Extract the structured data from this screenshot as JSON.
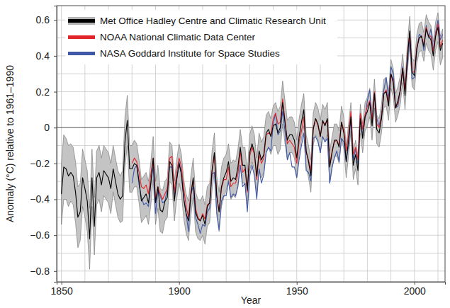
{
  "chart_data": {
    "type": "line",
    "x_label": "Year",
    "y_label": "Anomaly (°C) relative to 1961–1990",
    "xlim": [
      1848,
      2013
    ],
    "ylim": [
      -0.86,
      0.68
    ],
    "xticks": [
      1850,
      1900,
      1950,
      2000
    ],
    "x_minor_ticks": [
      1860,
      1870,
      1880,
      1890,
      1910,
      1920,
      1930,
      1940,
      1960,
      1970,
      1980,
      1990,
      2010
    ],
    "yticks": [
      {
        "value": -0.8,
        "label": "−0.8"
      },
      {
        "value": -0.6,
        "label": "−0.6"
      },
      {
        "value": -0.4,
        "label": "−0.4"
      },
      {
        "value": -0.2,
        "label": "−0.2"
      },
      0,
      0.2,
      0.4,
      0.6
    ],
    "y_minor_ticks": [
      -0.7,
      -0.5,
      -0.3,
      -0.1,
      0.1,
      0.3,
      0.5
    ],
    "grid": true,
    "legend": "upper-left",
    "x": [
      1850,
      1851,
      1852,
      1853,
      1854,
      1855,
      1856,
      1857,
      1858,
      1859,
      1860,
      1861,
      1862,
      1863,
      1864,
      1865,
      1866,
      1867,
      1868,
      1869,
      1870,
      1871,
      1872,
      1873,
      1874,
      1875,
      1876,
      1877,
      1878,
      1879,
      1880,
      1881,
      1882,
      1883,
      1884,
      1885,
      1886,
      1887,
      1888,
      1889,
      1890,
      1891,
      1892,
      1893,
      1894,
      1895,
      1896,
      1897,
      1898,
      1899,
      1900,
      1901,
      1902,
      1903,
      1904,
      1905,
      1906,
      1907,
      1908,
      1909,
      1910,
      1911,
      1912,
      1913,
      1914,
      1915,
      1916,
      1917,
      1918,
      1919,
      1920,
      1921,
      1922,
      1923,
      1924,
      1925,
      1926,
      1927,
      1928,
      1929,
      1930,
      1931,
      1932,
      1933,
      1934,
      1935,
      1936,
      1937,
      1938,
      1939,
      1940,
      1941,
      1942,
      1943,
      1944,
      1945,
      1946,
      1947,
      1948,
      1949,
      1950,
      1951,
      1952,
      1953,
      1954,
      1955,
      1956,
      1957,
      1958,
      1959,
      1960,
      1961,
      1962,
      1963,
      1964,
      1965,
      1966,
      1967,
      1968,
      1969,
      1970,
      1971,
      1972,
      1973,
      1974,
      1975,
      1976,
      1977,
      1978,
      1979,
      1980,
      1981,
      1982,
      1983,
      1984,
      1985,
      1986,
      1987,
      1988,
      1989,
      1990,
      1991,
      1992,
      1993,
      1994,
      1995,
      1996,
      1997,
      1998,
      1999,
      2000,
      2001,
      2002,
      2003,
      2004,
      2005,
      2006,
      2007,
      2008,
      2009,
      2010,
      2011,
      2012
    ],
    "series": [
      {
        "name": "Met Office Hadley Centre and Climatic Research Unit",
        "color": "#000000",
        "values": [
          -0.37,
          -0.22,
          -0.23,
          -0.27,
          -0.25,
          -0.27,
          -0.36,
          -0.5,
          -0.47,
          -0.28,
          -0.34,
          -0.41,
          -0.62,
          -0.28,
          -0.55,
          -0.28,
          -0.25,
          -0.32,
          -0.24,
          -0.26,
          -0.28,
          -0.34,
          -0.23,
          -0.3,
          -0.37,
          -0.4,
          -0.38,
          -0.08,
          0.04,
          -0.23,
          -0.23,
          -0.2,
          -0.21,
          -0.3,
          -0.41,
          -0.39,
          -0.37,
          -0.42,
          -0.31,
          -0.17,
          -0.42,
          -0.33,
          -0.46,
          -0.47,
          -0.41,
          -0.39,
          -0.19,
          -0.21,
          -0.41,
          -0.29,
          -0.2,
          -0.26,
          -0.4,
          -0.48,
          -0.52,
          -0.38,
          -0.28,
          -0.47,
          -0.51,
          -0.52,
          -0.49,
          -0.54,
          -0.44,
          -0.42,
          -0.24,
          -0.14,
          -0.38,
          -0.47,
          -0.33,
          -0.28,
          -0.25,
          -0.19,
          -0.3,
          -0.28,
          -0.29,
          -0.22,
          -0.11,
          -0.21,
          -0.21,
          -0.35,
          -0.14,
          -0.09,
          -0.14,
          -0.27,
          -0.13,
          -0.18,
          -0.15,
          -0.03,
          -0.01,
          -0.05,
          0.01,
          0.02,
          -0.03,
          0.0,
          0.14,
          0.03,
          -0.07,
          -0.04,
          -0.04,
          -0.07,
          -0.17,
          -0.05,
          0.03,
          0.1,
          -0.13,
          -0.19,
          -0.27,
          -0.01,
          0.05,
          0.02,
          -0.05,
          0.04,
          0.01,
          0.05,
          -0.22,
          -0.14,
          -0.07,
          -0.07,
          -0.11,
          0.03,
          -0.03,
          -0.19,
          -0.07,
          0.06,
          -0.21,
          -0.15,
          -0.24,
          0.05,
          -0.06,
          0.06,
          0.09,
          0.14,
          0.01,
          0.19,
          -0.01,
          -0.03,
          0.05,
          0.19,
          0.2,
          0.12,
          0.3,
          0.25,
          0.11,
          0.15,
          0.21,
          0.33,
          0.18,
          0.39,
          0.54,
          0.31,
          0.29,
          0.44,
          0.5,
          0.51,
          0.45,
          0.55,
          0.51,
          0.49,
          0.4,
          0.51,
          0.56,
          0.43,
          0.47
        ],
        "error": [
          0.17,
          0.18,
          0.17,
          0.17,
          0.16,
          0.16,
          0.17,
          0.17,
          0.16,
          0.16,
          0.16,
          0.17,
          0.17,
          0.16,
          0.16,
          0.15,
          0.15,
          0.15,
          0.14,
          0.14,
          0.14,
          0.14,
          0.13,
          0.13,
          0.13,
          0.13,
          0.14,
          0.14,
          0.14,
          0.13,
          0.13,
          0.13,
          0.12,
          0.12,
          0.12,
          0.12,
          0.12,
          0.12,
          0.12,
          0.12,
          0.12,
          0.12,
          0.12,
          0.12,
          0.11,
          0.11,
          0.11,
          0.11,
          0.11,
          0.11,
          0.11,
          0.11,
          0.11,
          0.11,
          0.11,
          0.11,
          0.11,
          0.11,
          0.11,
          0.11,
          0.11,
          0.11,
          0.11,
          0.11,
          0.11,
          0.11,
          0.11,
          0.11,
          0.11,
          0.11,
          0.1,
          0.1,
          0.1,
          0.1,
          0.1,
          0.1,
          0.1,
          0.1,
          0.1,
          0.1,
          0.1,
          0.1,
          0.1,
          0.1,
          0.1,
          0.1,
          0.1,
          0.1,
          0.1,
          0.1,
          0.11,
          0.12,
          0.12,
          0.12,
          0.12,
          0.12,
          0.11,
          0.1,
          0.1,
          0.1,
          0.1,
          0.1,
          0.1,
          0.09,
          0.09,
          0.09,
          0.09,
          0.09,
          0.09,
          0.09,
          0.09,
          0.09,
          0.09,
          0.09,
          0.09,
          0.09,
          0.09,
          0.09,
          0.09,
          0.09,
          0.09,
          0.09,
          0.09,
          0.08,
          0.08,
          0.08,
          0.08,
          0.08,
          0.08,
          0.08,
          0.08,
          0.08,
          0.08,
          0.08,
          0.08,
          0.08,
          0.08,
          0.08,
          0.08,
          0.08,
          0.08,
          0.08,
          0.08,
          0.08,
          0.08,
          0.08,
          0.08,
          0.08,
          0.08,
          0.08,
          0.08,
          0.08,
          0.08,
          0.08,
          0.08,
          0.08,
          0.08,
          0.08,
          0.08,
          0.08,
          0.08,
          0.08,
          0.08
        ]
      },
      {
        "name": "NOAA National Climatic Data Center",
        "color": "#e3242b",
        "values": [
          null,
          null,
          null,
          null,
          null,
          null,
          null,
          null,
          null,
          null,
          null,
          null,
          null,
          null,
          null,
          null,
          null,
          null,
          null,
          null,
          null,
          null,
          null,
          null,
          null,
          null,
          null,
          null,
          null,
          null,
          -0.2,
          -0.17,
          -0.19,
          -0.25,
          -0.33,
          -0.34,
          -0.32,
          -0.37,
          -0.26,
          -0.17,
          -0.4,
          -0.33,
          -0.37,
          -0.4,
          -0.37,
          -0.34,
          -0.17,
          -0.16,
          -0.36,
          -0.25,
          -0.17,
          -0.22,
          -0.34,
          -0.44,
          -0.5,
          -0.36,
          -0.29,
          -0.45,
          -0.5,
          -0.52,
          -0.48,
          -0.51,
          -0.43,
          -0.42,
          -0.24,
          -0.16,
          -0.38,
          -0.47,
          -0.34,
          -0.29,
          -0.29,
          -0.22,
          -0.33,
          -0.31,
          -0.31,
          -0.26,
          -0.13,
          -0.25,
          -0.23,
          -0.36,
          -0.16,
          -0.11,
          -0.15,
          -0.29,
          -0.15,
          -0.2,
          -0.17,
          -0.04,
          -0.03,
          -0.04,
          0.05,
          0.08,
          0.02,
          0.03,
          0.16,
          0.04,
          -0.09,
          -0.07,
          -0.09,
          -0.11,
          -0.2,
          -0.08,
          -0.02,
          0.06,
          -0.14,
          -0.18,
          -0.24,
          0.0,
          0.05,
          0.01,
          -0.05,
          0.03,
          0.02,
          0.04,
          -0.21,
          -0.13,
          -0.08,
          -0.07,
          -0.1,
          0.03,
          -0.01,
          -0.13,
          -0.04,
          0.09,
          -0.15,
          -0.11,
          -0.18,
          0.08,
          -0.01,
          0.07,
          0.12,
          0.15,
          0.04,
          0.2,
          0.02,
          0.0,
          0.06,
          0.19,
          0.21,
          0.14,
          0.3,
          0.26,
          0.11,
          0.14,
          0.21,
          0.33,
          0.21,
          0.4,
          0.53,
          0.31,
          0.31,
          0.45,
          0.5,
          0.51,
          0.46,
          0.56,
          0.51,
          0.51,
          0.42,
          0.52,
          0.58,
          0.45,
          0.49
        ]
      },
      {
        "name": "NASA Goddard Institute for Space Studies",
        "color": "#3e58a8",
        "values": [
          null,
          null,
          null,
          null,
          null,
          null,
          null,
          null,
          null,
          null,
          null,
          null,
          null,
          null,
          null,
          null,
          null,
          null,
          null,
          null,
          null,
          null,
          null,
          null,
          null,
          null,
          null,
          null,
          null,
          null,
          -0.31,
          -0.23,
          -0.21,
          -0.32,
          -0.39,
          -0.43,
          -0.42,
          -0.44,
          -0.31,
          -0.22,
          -0.48,
          -0.35,
          -0.38,
          -0.42,
          -0.41,
          -0.34,
          -0.22,
          -0.22,
          -0.38,
          -0.29,
          -0.19,
          -0.26,
          -0.39,
          -0.48,
          -0.58,
          -0.37,
          -0.33,
          -0.5,
          -0.54,
          -0.59,
          -0.54,
          -0.55,
          -0.47,
          -0.45,
          -0.26,
          -0.25,
          -0.47,
          -0.57,
          -0.41,
          -0.38,
          -0.38,
          -0.3,
          -0.39,
          -0.37,
          -0.38,
          -0.33,
          -0.21,
          -0.33,
          -0.31,
          -0.47,
          -0.27,
          -0.21,
          -0.27,
          -0.4,
          -0.23,
          -0.31,
          -0.26,
          -0.14,
          -0.11,
          -0.13,
          0.02,
          0.08,
          -0.04,
          -0.02,
          0.09,
          -0.02,
          -0.18,
          -0.14,
          -0.22,
          -0.22,
          -0.28,
          -0.18,
          -0.1,
          -0.03,
          -0.24,
          -0.25,
          -0.3,
          -0.06,
          -0.05,
          -0.08,
          -0.14,
          -0.05,
          -0.08,
          -0.06,
          -0.31,
          -0.22,
          -0.17,
          -0.13,
          -0.19,
          -0.06,
          -0.08,
          -0.19,
          -0.1,
          0.05,
          -0.18,
          -0.12,
          -0.21,
          0.07,
          -0.04,
          0.05,
          0.15,
          0.21,
          0.03,
          0.2,
          0.05,
          0.01,
          0.07,
          0.21,
          0.28,
          0.16,
          0.34,
          0.3,
          0.11,
          0.12,
          0.21,
          0.34,
          0.22,
          0.35,
          0.5,
          0.27,
          0.28,
          0.43,
          0.52,
          0.51,
          0.43,
          0.57,
          0.5,
          0.55,
          0.43,
          0.53,
          0.6,
          0.49,
          0.52
        ]
      }
    ]
  }
}
